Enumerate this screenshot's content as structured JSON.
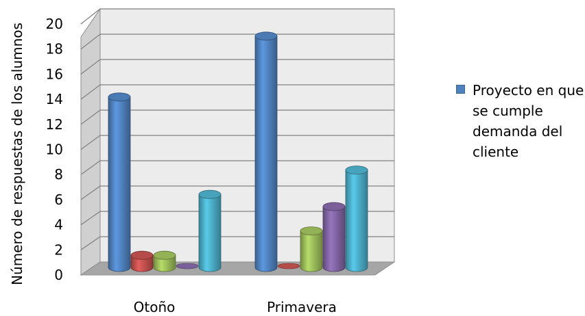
{
  "chart_data": {
    "type": "bar",
    "ylabel": "Número de respuestas de los alumnos",
    "ylim": [
      0,
      20
    ],
    "y_ticks": [
      "0",
      "2",
      "4",
      "6",
      "8",
      "10",
      "12",
      "14",
      "16",
      "18",
      "20"
    ],
    "categories": [
      "Otoño",
      "Primavera"
    ],
    "series": [
      {
        "name": "Proyecto en que se cumple demanda del cliente",
        "color": "#4f81bd",
        "values": [
          14,
          19
        ]
      },
      {
        "color": "#c0504d",
        "values": [
          1,
          0
        ]
      },
      {
        "color": "#9bbb59",
        "values": [
          1,
          3
        ]
      },
      {
        "color": "#8064a2",
        "values": [
          0,
          5
        ]
      },
      {
        "color": "#4bacc6",
        "values": [
          6,
          8
        ]
      }
    ],
    "legend_position": "right",
    "grid": true,
    "style": "3d-cylinder"
  }
}
